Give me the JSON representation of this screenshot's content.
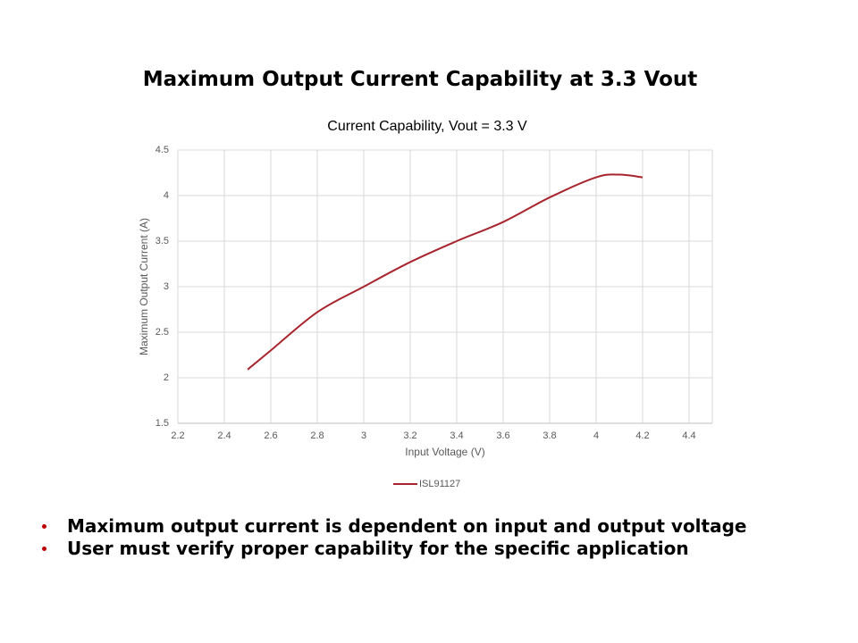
{
  "slide_title": "Maximum Output Current Capability at 3.3 Vout",
  "chart_data": {
    "type": "line",
    "title": "Current Capability, Vout = 3.3 V",
    "x_label": "Input Voltage (V)",
    "y_label": "Maximum Output Current (A)",
    "x": [
      2.5,
      2.6,
      2.8,
      3.0,
      3.2,
      3.4,
      3.6,
      3.8,
      4.0,
      4.1,
      4.2
    ],
    "series": [
      {
        "name": "ISL91127",
        "color": "#a8252e",
        "values": [
          2.09,
          2.3,
          2.72,
          3.0,
          3.27,
          3.5,
          3.71,
          3.98,
          4.2,
          4.23,
          4.2
        ]
      }
    ],
    "xlim": [
      2.2,
      4.5
    ],
    "xticks": [
      2.2,
      2.4,
      2.6,
      2.8,
      3,
      3.2,
      3.4,
      3.6,
      3.8,
      4,
      4.2,
      4.4
    ],
    "ylim": [
      1.5,
      4.5
    ],
    "yticks": [
      1.5,
      2,
      2.5,
      3,
      3.5,
      4,
      4.5
    ],
    "grid": true,
    "smooth": true,
    "legend": "bottom"
  },
  "bullets": [
    "Maximum output current is dependent on input and output voltage",
    "User must verify proper capability for the specific application"
  ]
}
